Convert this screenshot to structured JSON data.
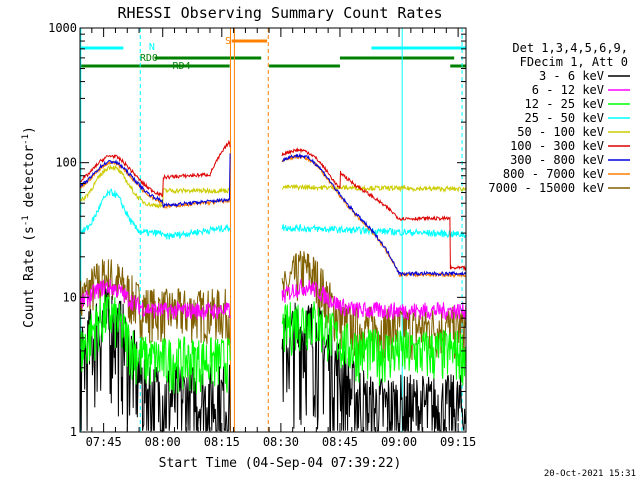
{
  "chart_data": {
    "type": "line",
    "title": "RHESSI Observing Summary Count Rates",
    "xlabel": "Start Time (04-Sep-04 07:39:22)",
    "ylabel_main": "Count Rate (s",
    "ylabel_sup1": "-1",
    "ylabel_mid": " detector",
    "ylabel_sup2": "-1",
    "ylabel_end": ")",
    "yscale": "log",
    "ylim": [
      1,
      1000
    ],
    "xlim_minutes_after_0739": [
      0,
      98
    ],
    "x_ticks": [
      {
        "label": "07:45",
        "m": 6
      },
      {
        "label": "08:00",
        "m": 21
      },
      {
        "label": "08:15",
        "m": 36
      },
      {
        "label": "08:30",
        "m": 51
      },
      {
        "label": "08:45",
        "m": 66
      },
      {
        "label": "09:00",
        "m": 81
      },
      {
        "label": "09:15",
        "m": 96
      }
    ],
    "y_ticks": [
      {
        "label": "1",
        "v": 1
      },
      {
        "label": "10",
        "v": 10
      },
      {
        "label": "100",
        "v": 100
      },
      {
        "label": "1000",
        "v": 1000
      }
    ],
    "legend_header": [
      "Det 1,3,4,5,6,9,",
      "FDecim 1, Att 0"
    ],
    "series": [
      {
        "name": "3 - 6 keV",
        "color": "#000000"
      },
      {
        "name": "6 - 12 keV",
        "color": "#ff00ff"
      },
      {
        "name": "12 - 25 keV",
        "color": "#00ff00"
      },
      {
        "name": "25 - 50 keV",
        "color": "#00ffff"
      },
      {
        "name": "50 - 100 keV",
        "color": "#cccc00"
      },
      {
        "name": "100 - 300 keV",
        "color": "#dd0000"
      },
      {
        "name": "300 - 800 keV",
        "color": "#0000dd"
      },
      {
        "name": "800 - 7000 keV",
        "color": "#ff8000"
      },
      {
        "name": "7000 - 15000 keV",
        "color": "#806000"
      }
    ],
    "flag_labels": {
      "N": "N",
      "S": "S",
      "RD0": "RD0",
      "RD4": "RD4"
    },
    "timestamp": "20-Oct-2021 15:31"
  }
}
